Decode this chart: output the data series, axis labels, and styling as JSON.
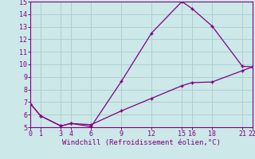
{
  "line1_x": [
    0,
    1,
    3,
    4,
    6,
    9,
    12,
    15,
    16,
    18,
    21,
    22
  ],
  "line1_y": [
    6.85,
    5.9,
    5.1,
    5.3,
    5.05,
    8.65,
    12.5,
    15.0,
    14.45,
    13.05,
    9.85,
    9.8
  ],
  "line2_x": [
    0,
    1,
    3,
    4,
    6,
    9,
    12,
    15,
    16,
    18,
    21,
    22
  ],
  "line2_y": [
    6.85,
    5.9,
    5.1,
    5.3,
    5.2,
    6.3,
    7.3,
    8.3,
    8.55,
    8.6,
    9.5,
    9.8
  ],
  "line_color": "#800080",
  "bg_color": "#cce8e8",
  "grid_color": "#aacccc",
  "xlabel": "Windchill (Refroidissement éolien,°C)",
  "ylim": [
    5,
    15
  ],
  "xlim": [
    0,
    22
  ],
  "yticks": [
    5,
    6,
    7,
    8,
    9,
    10,
    11,
    12,
    13,
    14,
    15
  ],
  "xticks": [
    0,
    1,
    3,
    4,
    6,
    9,
    12,
    15,
    16,
    18,
    21,
    22
  ],
  "tick_fontsize": 6.0,
  "xlabel_fontsize": 6.5
}
